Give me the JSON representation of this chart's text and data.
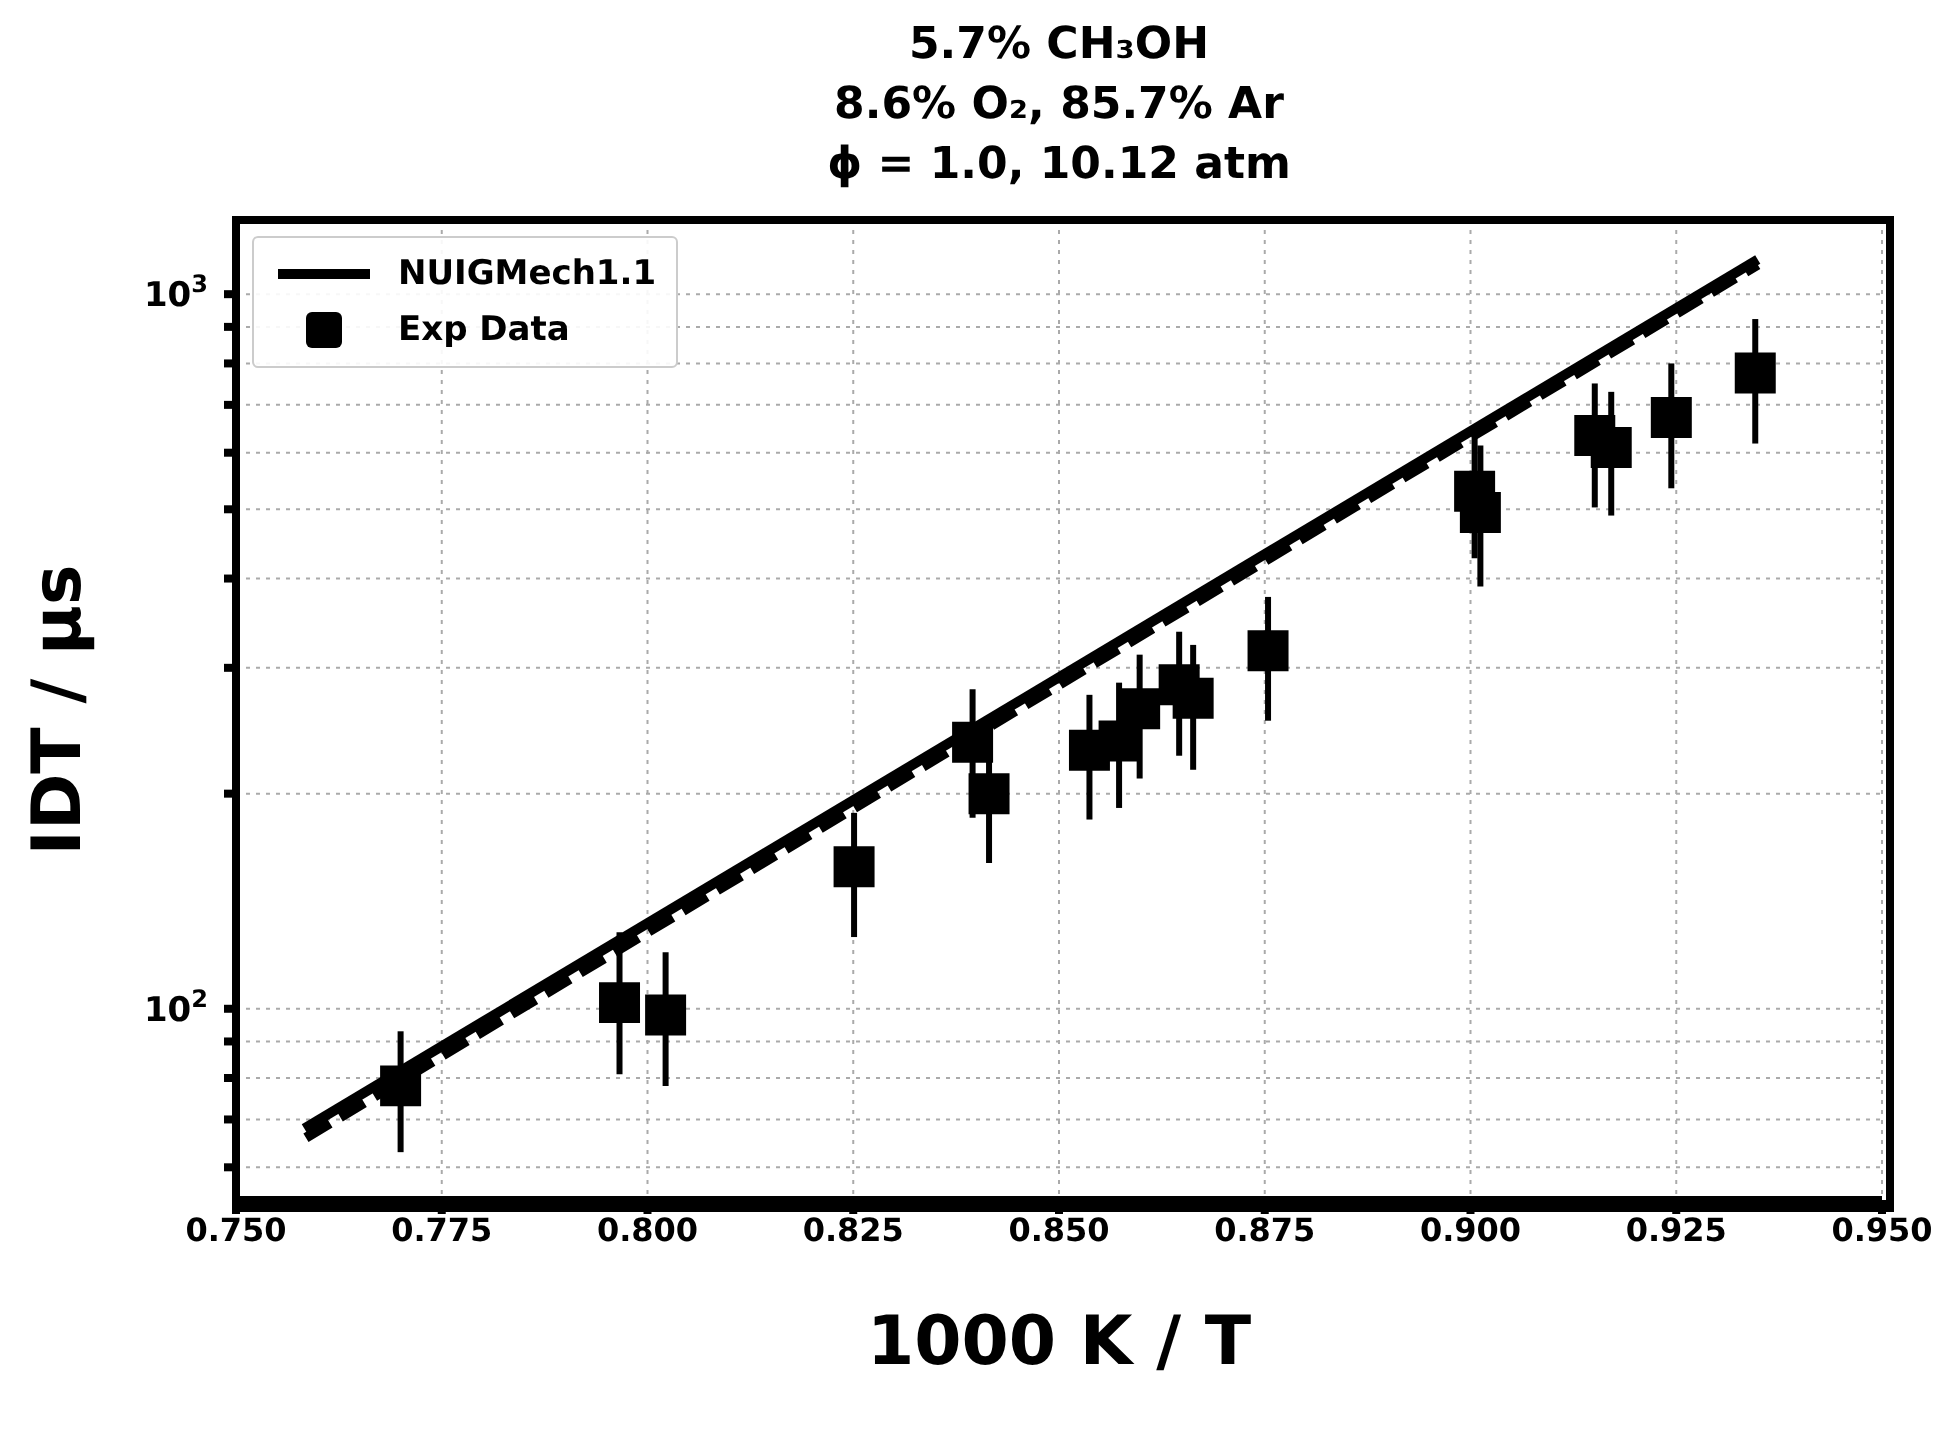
{
  "chart_data": {
    "type": "scatter",
    "title": "5.7% CH₃OH\n8.6% O₂, 85.7% Ar\nϕ = 1.0, 10.12 atm",
    "xlabel": "1000 K / T",
    "ylabel": "IDT / μs",
    "log": "y",
    "grid": true,
    "legend": "top left",
    "xlim": [
      0.75,
      0.95
    ],
    "xticks": [
      {
        "value": 0.75,
        "label": "0.750"
      },
      0.775,
      {
        "value": 0.8,
        "label": "0.800"
      },
      0.825,
      {
        "value": 0.85,
        "label": "0.850"
      },
      0.875,
      {
        "value": 0.9,
        "label": "0.900"
      },
      0.925,
      {
        "value": 0.95,
        "label": "0.950"
      }
    ],
    "ylim": [
      54,
      1270
    ],
    "yticks": [
      {
        "value": 60,
        "label": null
      },
      {
        "value": 70,
        "label": null
      },
      {
        "value": 80,
        "label": null
      },
      {
        "value": 90,
        "label": null
      },
      {
        "value": 100,
        "label": "10$^{2}$"
      },
      {
        "value": 200,
        "label": null
      },
      {
        "value": 300,
        "label": null
      },
      {
        "value": 400,
        "label": null
      },
      {
        "value": 500,
        "label": null
      },
      {
        "value": 600,
        "label": null
      },
      {
        "value": 700,
        "label": null
      },
      {
        "value": 800,
        "label": null
      },
      {
        "value": 900,
        "label": null
      },
      {
        "value": 1000,
        "label": "10$^{3}$"
      }
    ],
    "series": [
      {
        "name": "NUIGMech1.1",
        "type": "line",
        "color": "#000000",
        "line_style": "solid",
        "marker": "none",
        "x": [
          0.7583,
          0.9349
        ],
        "values": [
          68,
          1118
        ]
      },
      {
        "type": "line",
        "color": "#000000",
        "line_style": "dashed",
        "marker": "none",
        "x": [
          0.7585,
          0.9349
        ],
        "values": [
          66,
          1100
        ]
      },
      {
        "name": "Exp Data",
        "color": "#000000",
        "marker": "square",
        "x": [
          0.77,
          0.7966,
          0.8022,
          0.8251,
          0.8395,
          0.8415,
          0.8537,
          0.8573,
          0.8598,
          0.8646,
          0.8663,
          0.8754,
          0.9005,
          0.9012,
          0.9151,
          0.9171,
          0.9244,
          0.9346
        ],
        "values": [
          78,
          102,
          98,
          158,
          236,
          200,
          230,
          237,
          263,
          284,
          272,
          317,
          530,
          495,
          634,
          610,
          672,
          776
        ],
        "errors": [
          [
            63,
            93
          ],
          [
            81,
            128
          ],
          [
            78,
            120
          ],
          [
            126,
            188
          ],
          [
            185,
            280
          ],
          [
            160,
            254
          ],
          [
            184,
            275
          ],
          [
            191,
            286
          ],
          [
            210,
            313
          ],
          [
            226,
            337
          ],
          [
            216,
            323
          ],
          [
            253,
            377
          ],
          [
            427,
            633
          ],
          [
            390,
            614
          ],
          [
            503,
            750
          ],
          [
            490,
            730
          ],
          [
            535,
            800
          ],
          [
            618,
            923
          ]
        ]
      }
    ]
  }
}
